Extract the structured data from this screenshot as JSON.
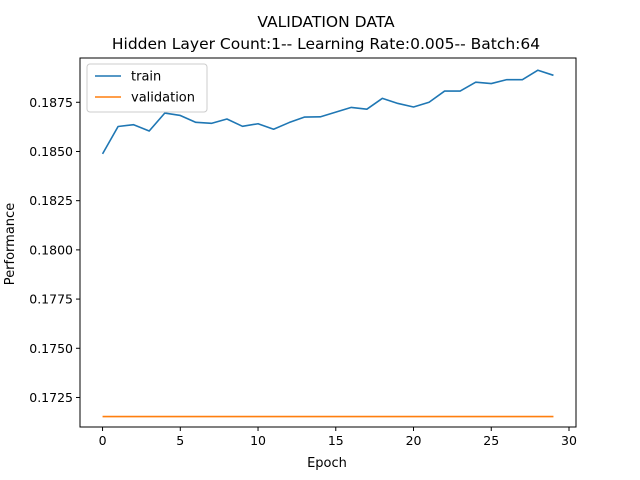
{
  "chart_data": {
    "type": "line",
    "title": "VALIDATION DATA",
    "subtitle": "Hidden Layer Count:1-- Learning Rate:0.005-- Batch:64",
    "xlabel": "Epoch",
    "ylabel": "Performance",
    "xlim": [
      -1.45,
      30.45
    ],
    "ylim": [
      0.171,
      0.18975
    ],
    "xticks": [
      0,
      5,
      10,
      15,
      20,
      25,
      30
    ],
    "xtick_labels": [
      "0",
      "5",
      "10",
      "15",
      "20",
      "25",
      "30"
    ],
    "yticks": [
      0.1725,
      0.175,
      0.1775,
      0.18,
      0.1825,
      0.185,
      0.1875
    ],
    "ytick_labels": [
      "0.1725",
      "0.1750",
      "0.1775",
      "0.1800",
      "0.1825",
      "0.1850",
      "0.1875"
    ],
    "grid": false,
    "legend_position": "top-left",
    "x": [
      0,
      1,
      2,
      3,
      4,
      5,
      6,
      7,
      8,
      9,
      10,
      11,
      12,
      13,
      14,
      15,
      16,
      17,
      18,
      19,
      20,
      21,
      22,
      23,
      24,
      25,
      26,
      27,
      28,
      29
    ],
    "series": [
      {
        "name": "train",
        "color": "#1f77b4",
        "values": [
          0.18488,
          0.18627,
          0.18636,
          0.18604,
          0.18695,
          0.18683,
          0.18648,
          0.18643,
          0.18665,
          0.18628,
          0.18641,
          0.18613,
          0.18647,
          0.18675,
          0.18676,
          0.187,
          0.18724,
          0.18715,
          0.1877,
          0.18744,
          0.18726,
          0.1875,
          0.18807,
          0.18807,
          0.18852,
          0.18845,
          0.18865,
          0.18865,
          0.18913,
          0.18887
        ]
      },
      {
        "name": "validation",
        "color": "#ff7f0e",
        "values": [
          0.17153,
          0.17153,
          0.17153,
          0.17153,
          0.17153,
          0.17153,
          0.17153,
          0.17153,
          0.17153,
          0.17153,
          0.17153,
          0.17153,
          0.17153,
          0.17153,
          0.17153,
          0.17153,
          0.17153,
          0.17153,
          0.17153,
          0.17153,
          0.17153,
          0.17153,
          0.17153,
          0.17153,
          0.17153,
          0.17153,
          0.17153,
          0.17153,
          0.17153,
          0.17153
        ]
      }
    ]
  }
}
